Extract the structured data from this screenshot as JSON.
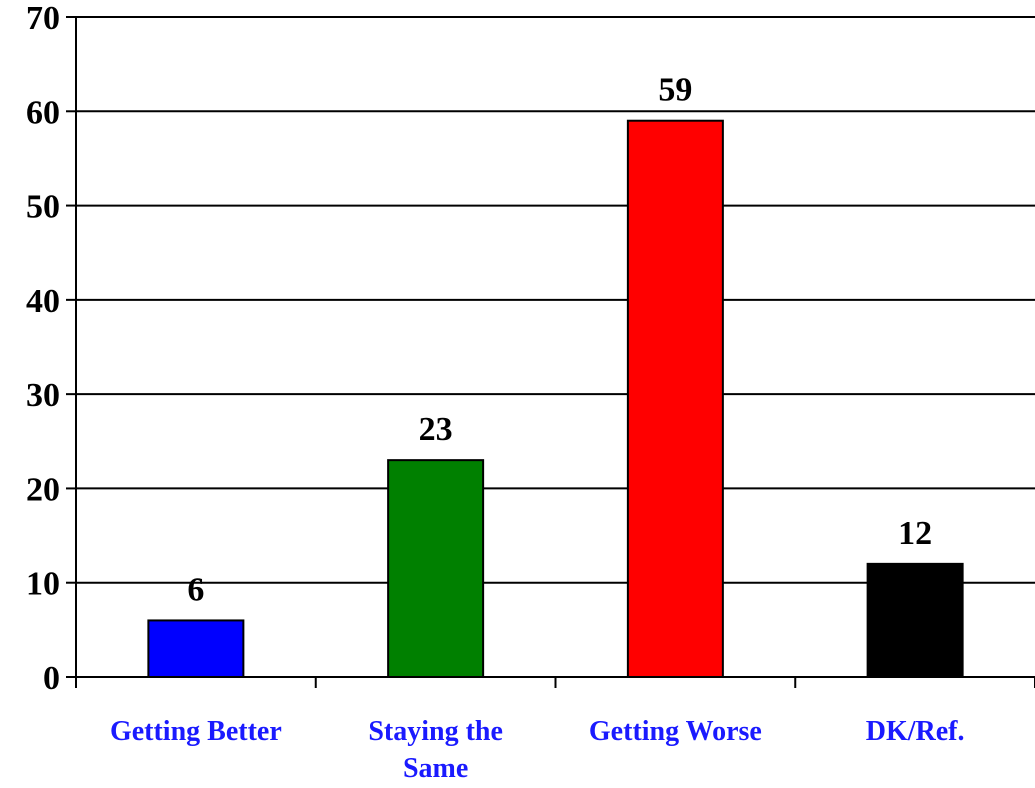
{
  "chart_data": {
    "type": "bar",
    "title": "",
    "xlabel": "",
    "ylabel": "",
    "categories": [
      "Getting Better",
      "Staying the Same",
      "Getting Worse",
      "DK/Ref."
    ],
    "category_lines": [
      [
        "Getting Better"
      ],
      [
        "Staying the",
        "Same"
      ],
      [
        "Getting Worse"
      ],
      [
        "DK/Ref."
      ]
    ],
    "values": [
      6,
      23,
      59,
      12
    ],
    "value_labels": [
      "6",
      "23",
      "59",
      "12"
    ],
    "bar_colors": [
      "#0000ff",
      "#008000",
      "#ff0000",
      "#000000"
    ],
    "category_label_color": "#1a1aff",
    "ylim": [
      0,
      70
    ],
    "yticks": [
      0,
      10,
      20,
      30,
      40,
      50,
      60,
      70
    ],
    "ytick_labels": [
      "0",
      "10",
      "20",
      "30",
      "40",
      "50",
      "60",
      "70"
    ],
    "grid": true,
    "legend": "none"
  }
}
